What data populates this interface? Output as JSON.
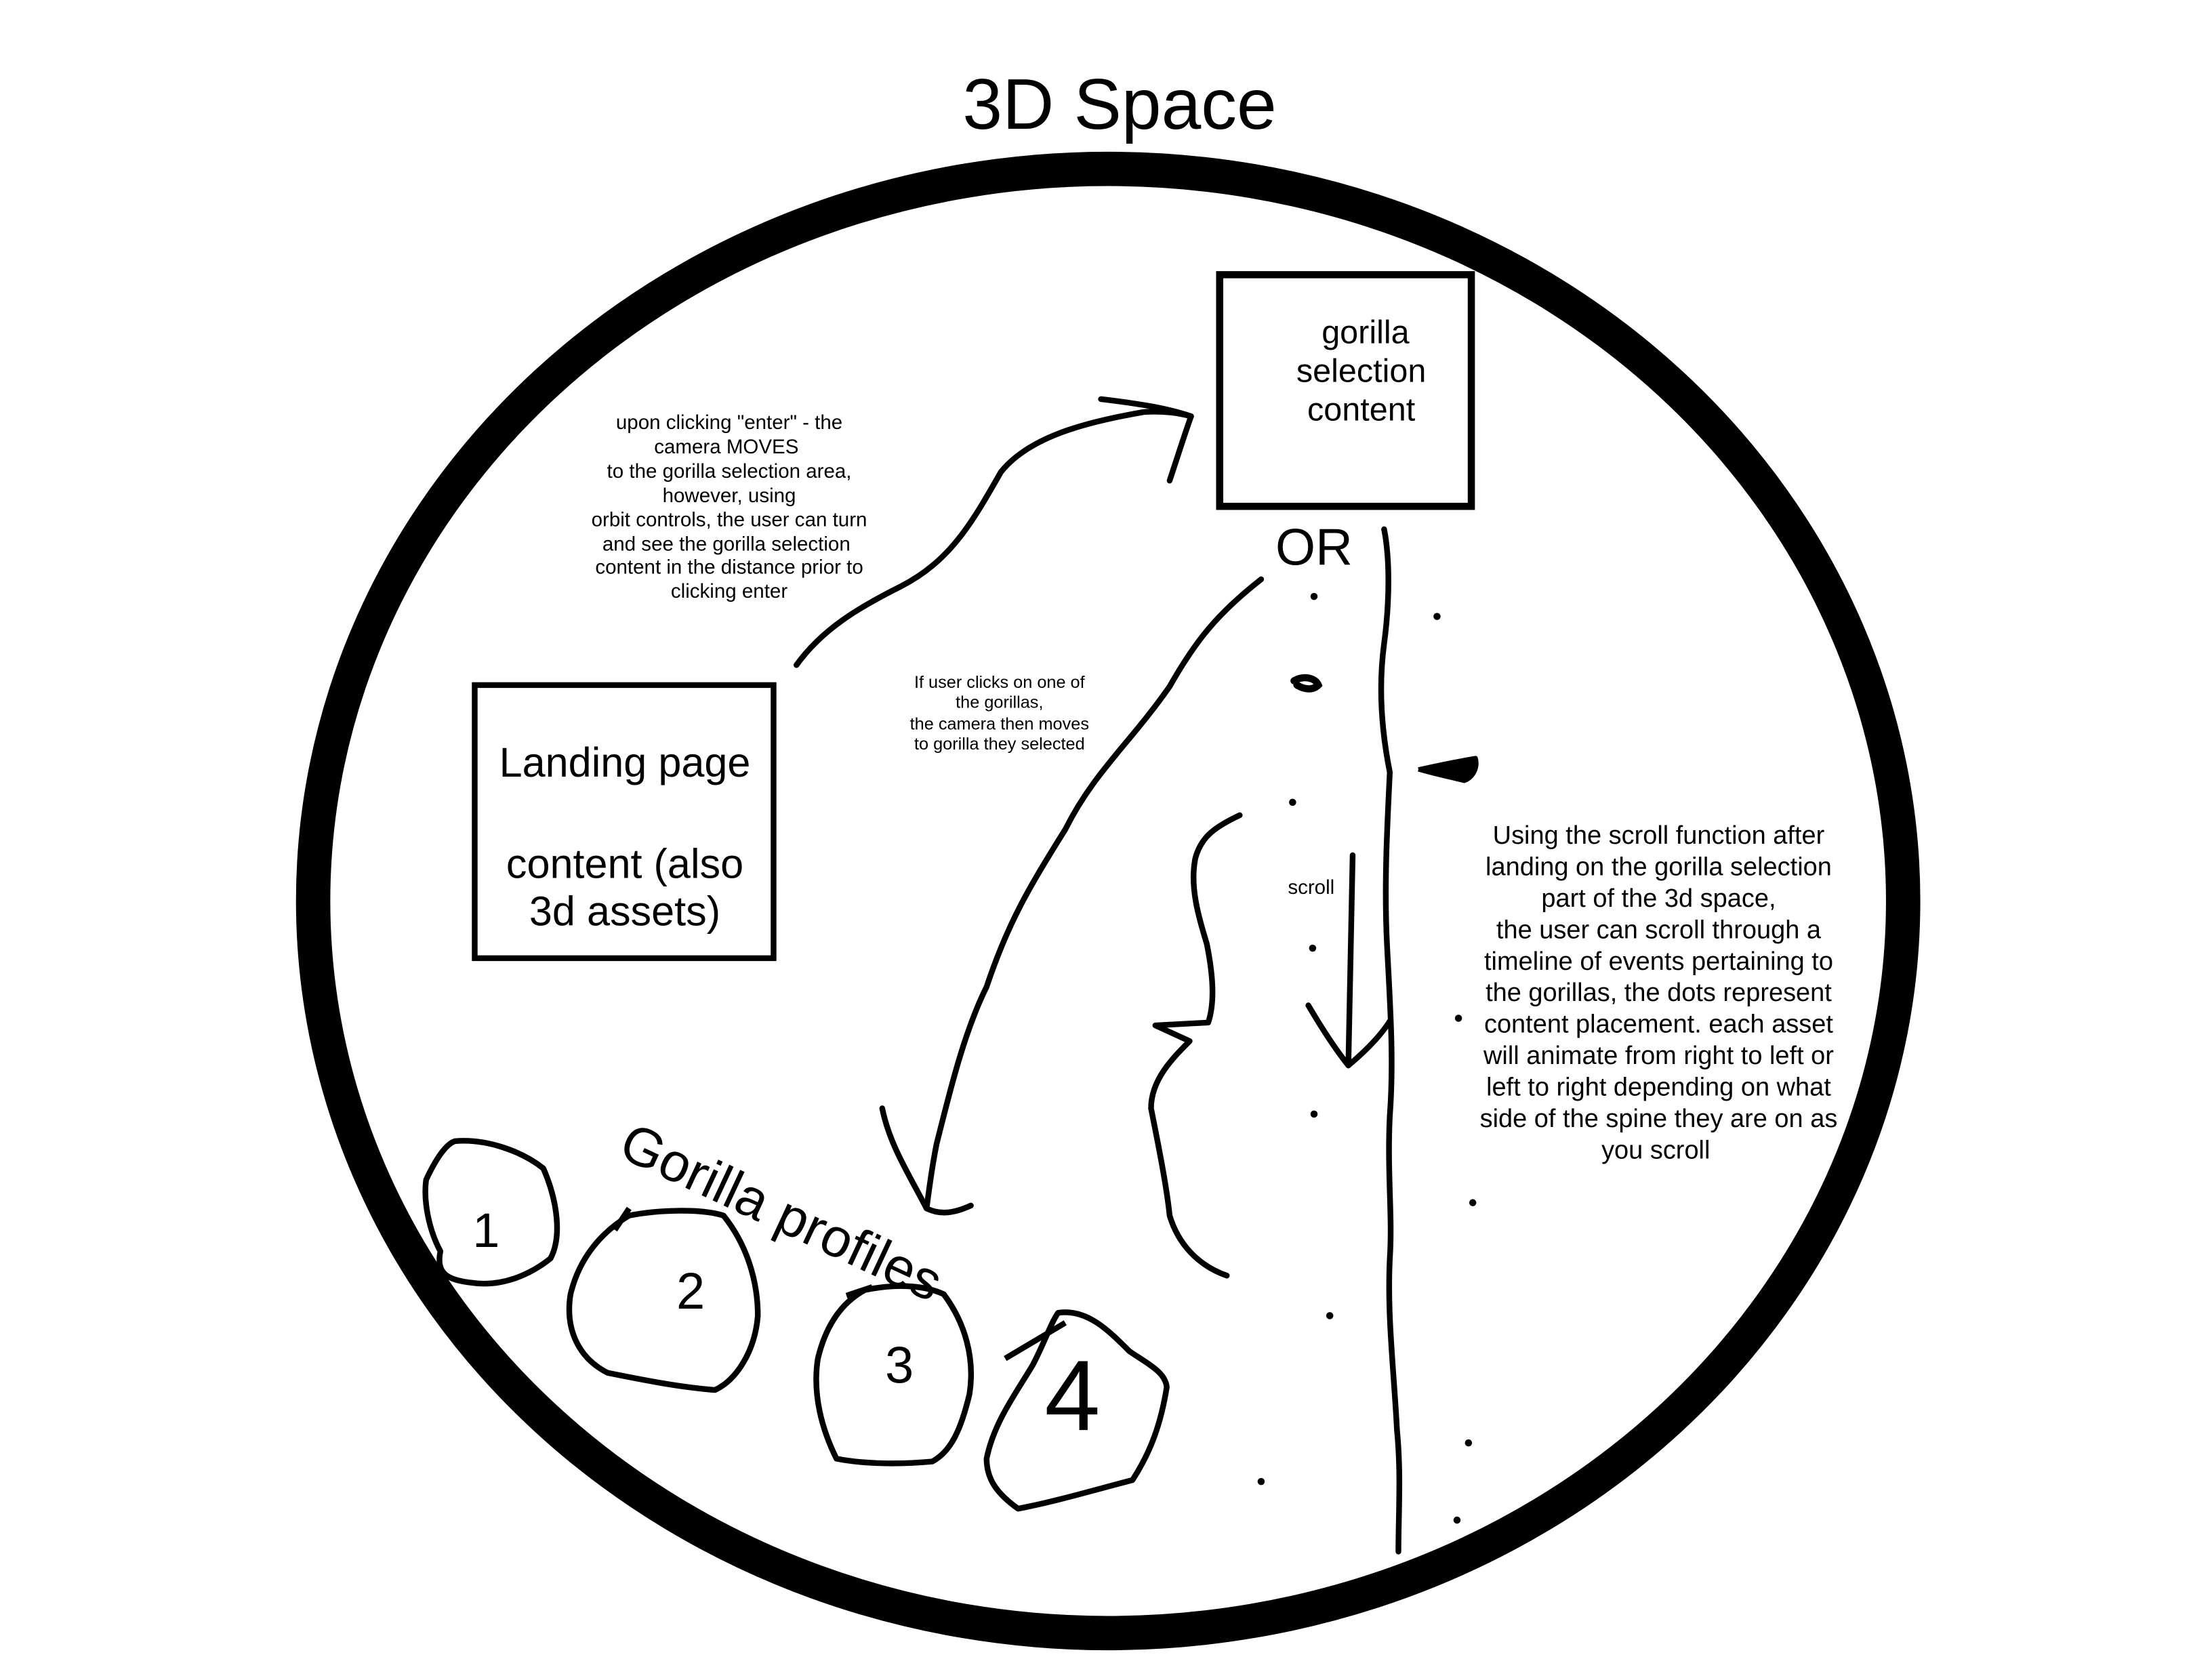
{
  "title": "3D Space",
  "landing_box": {
    "line1": "Landing page",
    "line2": "content (also",
    "line3": "3d assets)"
  },
  "gorilla_selection_box": {
    "line1": "gorilla",
    "line2": "selection",
    "line3": "content"
  },
  "or_label": "OR",
  "enter_note": [
    "upon clicking \"enter\" - the",
    "camera MOVES",
    "to the gorilla selection area,",
    "however, using",
    "orbit controls,  the user can turn",
    "and see the gorilla selection",
    "content in the distance prior to",
    "clicking enter"
  ],
  "click_note": [
    "If user clicks on one of",
    "the gorillas,",
    "the camera then moves",
    "to gorilla they selected"
  ],
  "scroll_label": "scroll",
  "scroll_note": [
    "Using the scroll function after",
    "landing on the gorilla selection",
    "part of the 3d space,",
    "the user can scroll through a",
    "timeline of events pertaining to",
    "the gorillas, the dots represent",
    "content placement. each asset",
    "will animate from right to left or",
    "left to right depending on what",
    "side of the spine they are on as",
    "you scroll"
  ],
  "profiles_label": "Gorilla profiles",
  "profiles": [
    "1",
    "2",
    "3",
    "4"
  ],
  "colors": {
    "ink": "#000000",
    "background": "#ffffff"
  }
}
